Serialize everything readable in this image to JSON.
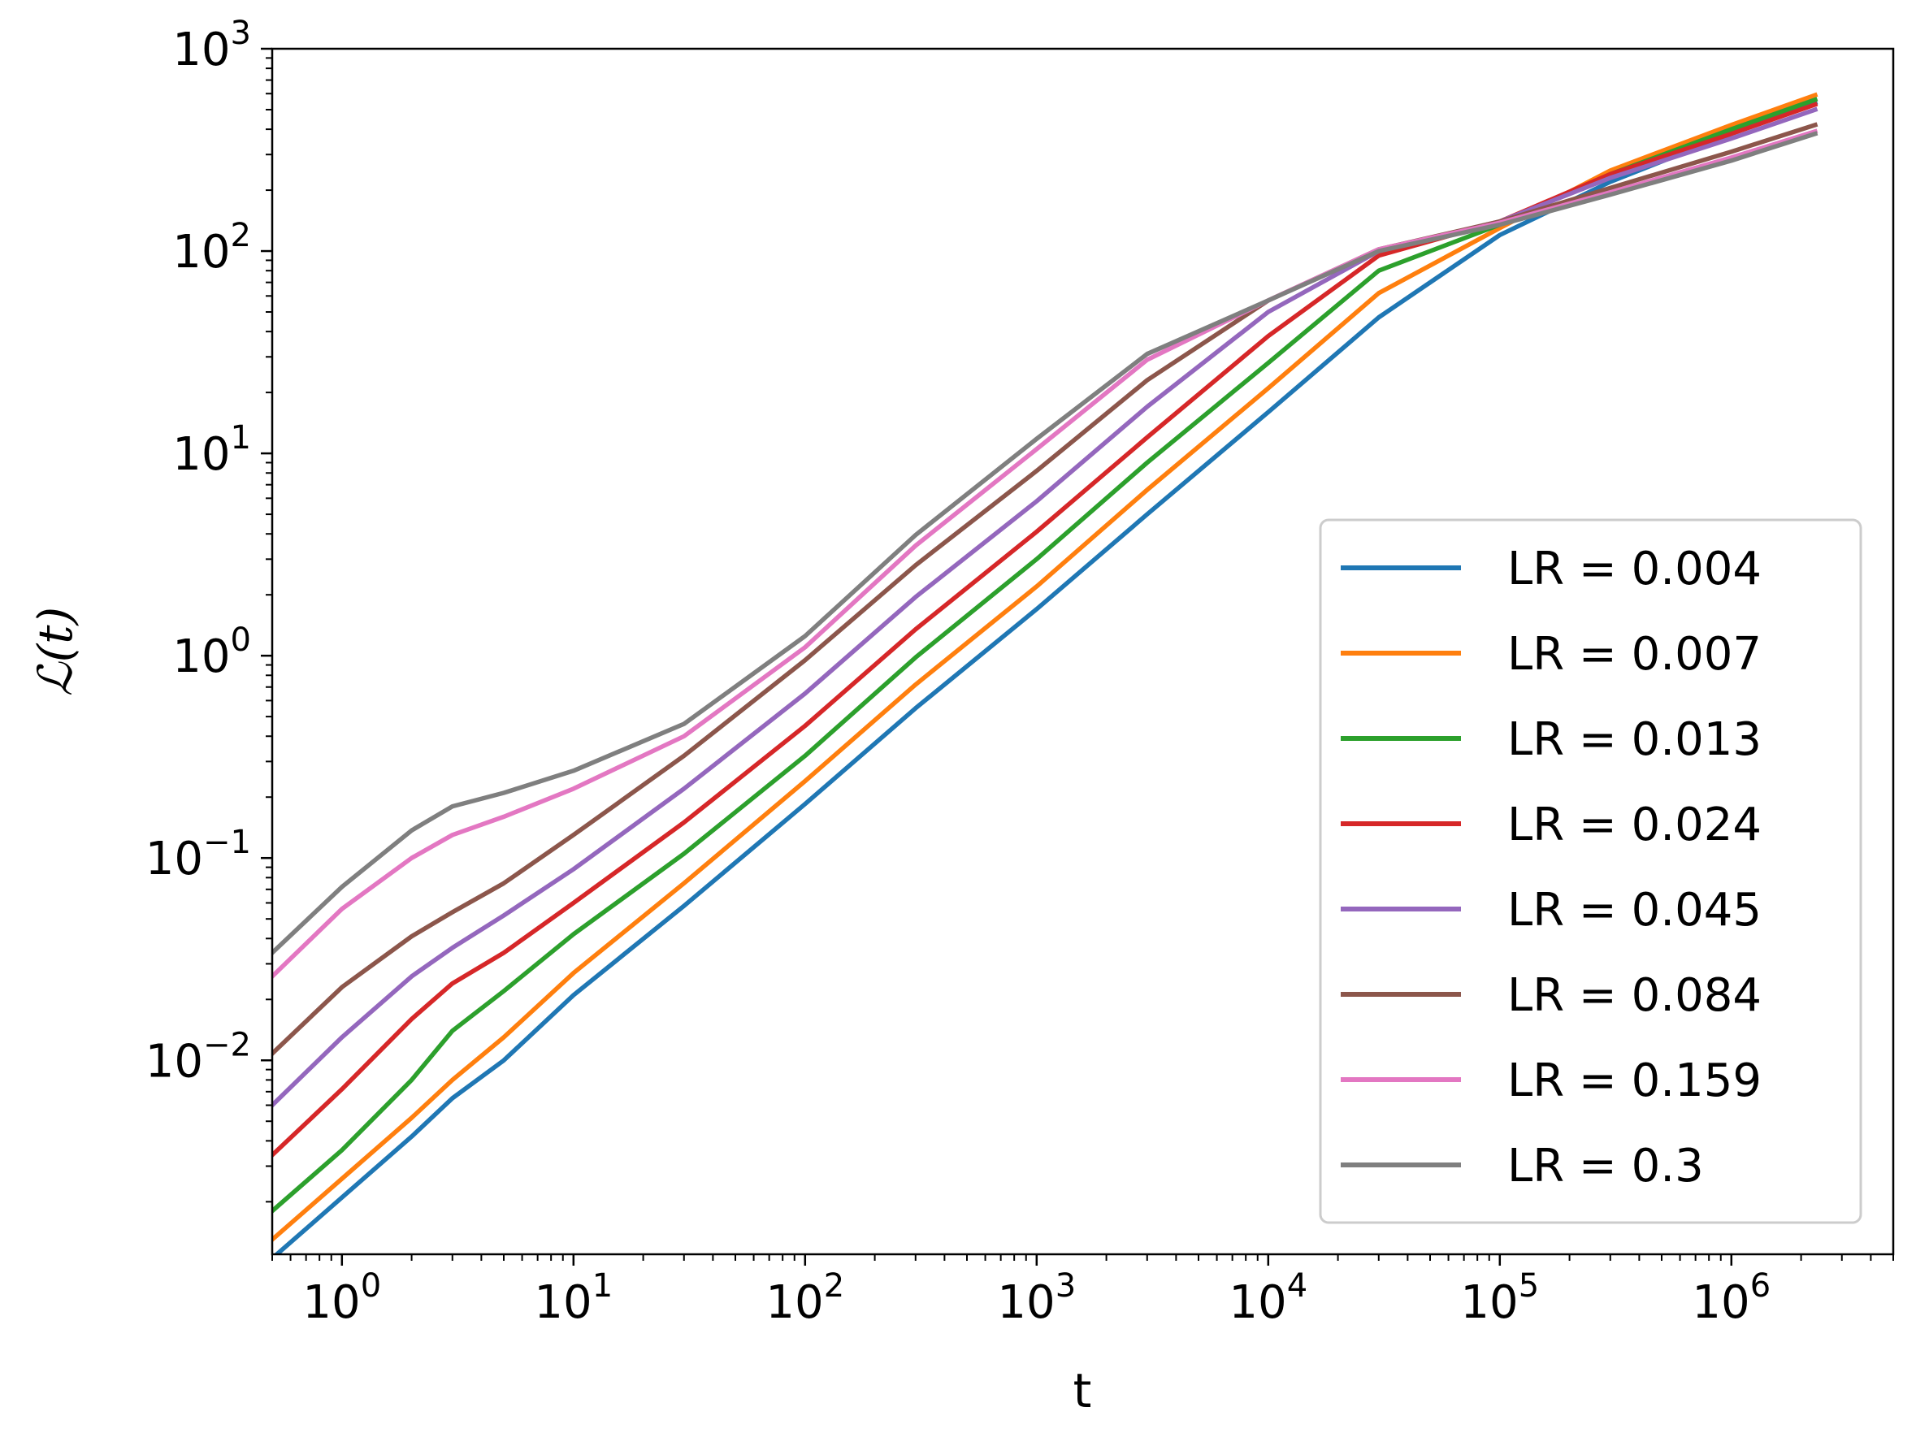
{
  "chart_data": {
    "type": "line",
    "title": "",
    "xlabel": "t",
    "ylabel": "ℒ(t)",
    "xscale": "log",
    "yscale": "log",
    "xlim": [
      0.5,
      5000000
    ],
    "ylim": [
      0.0011,
      1000
    ],
    "x_ticks": [
      {
        "base": "10",
        "exp": "0"
      },
      {
        "base": "10",
        "exp": "1"
      },
      {
        "base": "10",
        "exp": "2"
      },
      {
        "base": "10",
        "exp": "3"
      },
      {
        "base": "10",
        "exp": "4"
      },
      {
        "base": "10",
        "exp": "5"
      },
      {
        "base": "10",
        "exp": "6"
      }
    ],
    "y_ticks": [
      {
        "base": "10",
        "exp": "−2"
      },
      {
        "base": "10",
        "exp": "−1"
      },
      {
        "base": "10",
        "exp": "0"
      },
      {
        "base": "10",
        "exp": "1"
      },
      {
        "base": "10",
        "exp": "2"
      },
      {
        "base": "10",
        "exp": "3"
      }
    ],
    "legend_position": "lower-right",
    "x": [
      0.5,
      1,
      2,
      3,
      5,
      10,
      30,
      100,
      300,
      1000,
      3000,
      10000,
      30000,
      100000,
      300000,
      1000000,
      2300000
    ],
    "series": [
      {
        "name": "LR = 0.004",
        "color": "#1f77b4",
        "values": [
          0.00105,
          0.0021,
          0.0042,
          0.0065,
          0.01,
          0.021,
          0.058,
          0.185,
          0.55,
          1.7,
          5.0,
          16,
          47,
          120,
          220,
          380,
          540
        ]
      },
      {
        "name": "LR = 0.007",
        "color": "#ff7f0e",
        "values": [
          0.0013,
          0.0026,
          0.0052,
          0.008,
          0.013,
          0.027,
          0.075,
          0.24,
          0.72,
          2.2,
          6.6,
          21,
          62,
          130,
          250,
          420,
          590
        ]
      },
      {
        "name": "LR = 0.013",
        "color": "#2ca02c",
        "values": [
          0.0018,
          0.0036,
          0.008,
          0.014,
          0.022,
          0.042,
          0.105,
          0.32,
          0.98,
          3.0,
          9.0,
          28,
          80,
          135,
          240,
          400,
          560
        ]
      },
      {
        "name": "LR = 0.024",
        "color": "#d62728",
        "values": [
          0.0034,
          0.0072,
          0.016,
          0.024,
          0.034,
          0.06,
          0.15,
          0.45,
          1.35,
          4.1,
          12.0,
          38,
          95,
          140,
          240,
          380,
          530
        ]
      },
      {
        "name": "LR = 0.045",
        "color": "#9467bd",
        "values": [
          0.006,
          0.013,
          0.026,
          0.036,
          0.052,
          0.088,
          0.22,
          0.65,
          1.95,
          5.8,
          17.0,
          50,
          100,
          140,
          230,
          360,
          500
        ]
      },
      {
        "name": "LR = 0.084",
        "color": "#8c564b",
        "values": [
          0.0108,
          0.023,
          0.041,
          0.054,
          0.075,
          0.13,
          0.32,
          0.95,
          2.8,
          8.2,
          23.0,
          57,
          102,
          140,
          205,
          310,
          420
        ]
      },
      {
        "name": "LR = 0.159",
        "color": "#e377c2",
        "values": [
          0.026,
          0.056,
          0.1,
          0.13,
          0.16,
          0.22,
          0.4,
          1.1,
          3.5,
          10.5,
          29.0,
          57,
          102,
          138,
          195,
          290,
          390
        ]
      },
      {
        "name": "LR = 0.3",
        "color": "#7f7f7f",
        "values": [
          0.034,
          0.072,
          0.137,
          0.18,
          0.21,
          0.27,
          0.46,
          1.25,
          3.95,
          11.8,
          31.0,
          57,
          100,
          135,
          190,
          280,
          380
        ]
      }
    ]
  }
}
